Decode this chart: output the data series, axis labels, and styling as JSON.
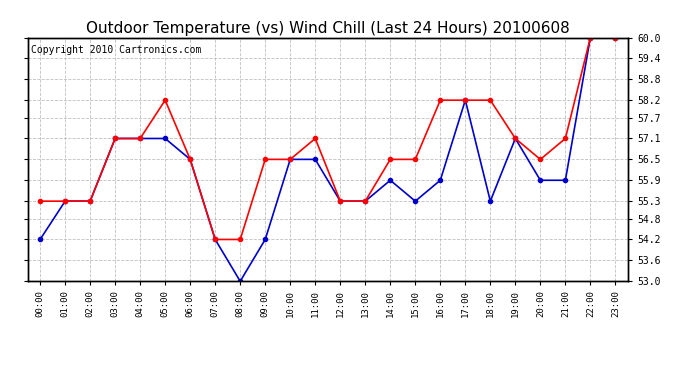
{
  "title": "Outdoor Temperature (vs) Wind Chill (Last 24 Hours) 20100608",
  "copyright": "Copyright 2010 Cartronics.com",
  "hours": [
    "00:00",
    "01:00",
    "02:00",
    "03:00",
    "04:00",
    "05:00",
    "06:00",
    "07:00",
    "08:00",
    "09:00",
    "10:00",
    "11:00",
    "12:00",
    "13:00",
    "14:00",
    "15:00",
    "16:00",
    "17:00",
    "18:00",
    "19:00",
    "20:00",
    "21:00",
    "22:00",
    "23:00"
  ],
  "temp": [
    55.3,
    55.3,
    55.3,
    57.1,
    57.1,
    58.2,
    56.5,
    54.2,
    54.2,
    56.5,
    56.5,
    57.1,
    55.3,
    55.3,
    56.5,
    56.5,
    58.2,
    58.2,
    58.2,
    57.1,
    56.5,
    57.1,
    60.0,
    60.0
  ],
  "wind_chill": [
    54.2,
    55.3,
    55.3,
    57.1,
    57.1,
    57.1,
    56.5,
    54.2,
    53.0,
    54.2,
    56.5,
    56.5,
    55.3,
    55.3,
    55.9,
    55.3,
    55.9,
    58.2,
    55.3,
    57.1,
    55.9,
    55.9,
    60.0,
    60.0
  ],
  "temp_color": "#ff0000",
  "wind_chill_color": "#0000cc",
  "ylim": [
    53.0,
    60.0
  ],
  "yticks": [
    53.0,
    53.6,
    54.2,
    54.8,
    55.3,
    55.9,
    56.5,
    57.1,
    57.7,
    58.2,
    58.8,
    59.4,
    60.0
  ],
  "bg_color": "#ffffff",
  "grid_color": "#b0b0b0",
  "title_fontsize": 11,
  "copyright_fontsize": 7,
  "marker_size": 3,
  "linewidth": 1.2
}
